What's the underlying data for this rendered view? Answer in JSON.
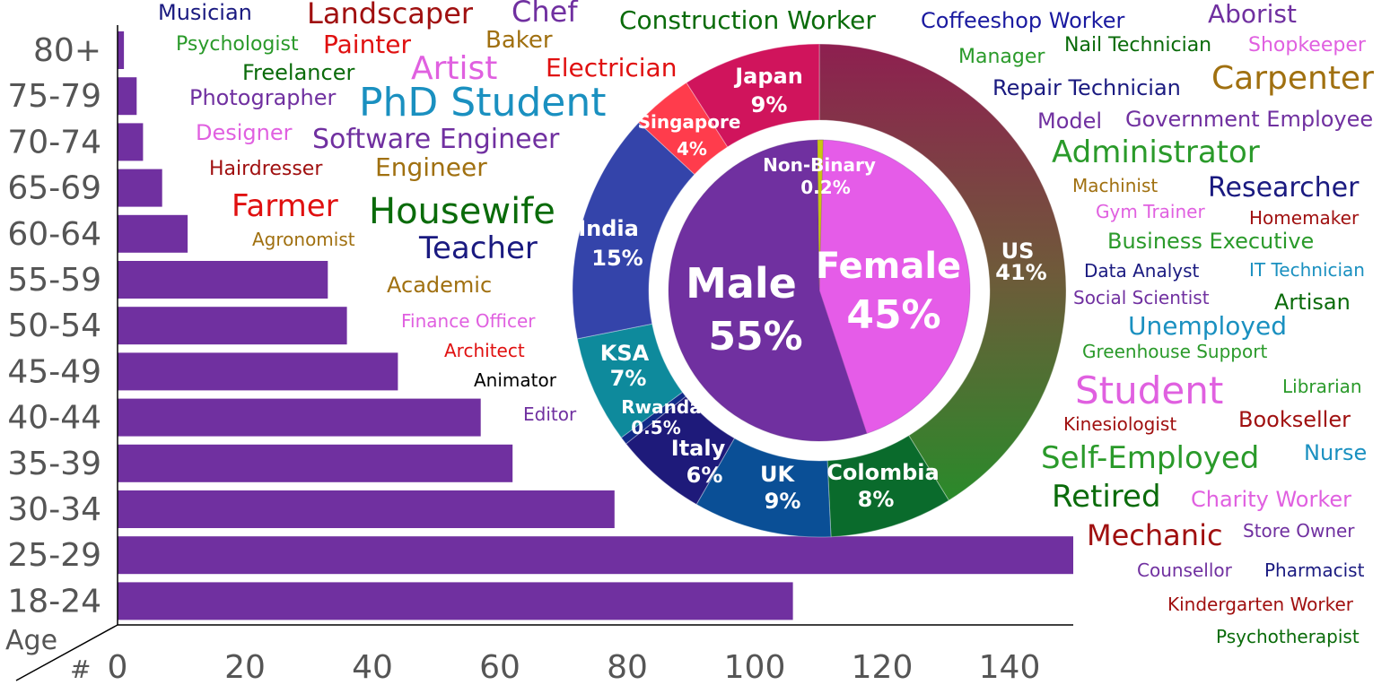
{
  "chart_data": [
    {
      "type": "bar",
      "orientation": "horizontal",
      "ylabel": "Age",
      "xlabel": "#",
      "categories": [
        "80+",
        "75-79",
        "70-74",
        "65-69",
        "60-64",
        "55-59",
        "50-54",
        "45-49",
        "40-44",
        "35-39",
        "30-34",
        "25-29",
        "18-24"
      ],
      "values": [
        1,
        3,
        4,
        7,
        11,
        33,
        36,
        44,
        57,
        62,
        78,
        150,
        106
      ],
      "xlim": [
        0,
        150
      ],
      "xticks": [
        "0",
        "20",
        "40",
        "60",
        "80",
        "100",
        "120",
        "140"
      ],
      "color": "#7030a0",
      "grid": false
    },
    {
      "type": "pie",
      "ring": "inner",
      "labels": [
        "Female",
        "Male",
        "Non-Binary"
      ],
      "values": [
        45,
        55,
        0.2
      ],
      "value_labels": [
        "45%",
        "55%",
        "0.2%"
      ],
      "colors": [
        "#e55ce8",
        "#7030a0",
        "#c8c810"
      ]
    },
    {
      "type": "pie",
      "ring": "outer",
      "labels": [
        "US",
        "Colombia",
        "UK",
        "Italy",
        "Rwanda",
        "KSA",
        "India",
        "Singapore",
        "Japan"
      ],
      "values": [
        41,
        8,
        9,
        6,
        0.5,
        7,
        15,
        4,
        9
      ],
      "value_labels": [
        "41%",
        "8%",
        "9%",
        "6%",
        "0.5%",
        "7%",
        "15%",
        "4%",
        "9%"
      ],
      "colors": [
        "#7a4a3c",
        "#0a6b2c",
        "#0a4f96",
        "#1e1a7a",
        "#102a88",
        "#0e8a9c",
        "#3444aa",
        "#ff3c4c",
        "#d0145c"
      ]
    }
  ],
  "word_cloud": [
    {
      "text": "Musician",
      "color": "#1a1a80"
    },
    {
      "text": "Landscaper",
      "color": "#a01010"
    },
    {
      "text": "Chef",
      "color": "#7030a0"
    },
    {
      "text": "Construction Worker",
      "color": "#0a6b0a"
    },
    {
      "text": "Coffeeshop Worker",
      "color": "#1a1aa0"
    },
    {
      "text": "Aborist",
      "color": "#7030a0"
    },
    {
      "text": "Psychologist",
      "color": "#2a9a2a"
    },
    {
      "text": "Painter",
      "color": "#e01010"
    },
    {
      "text": "Baker",
      "color": "#a07010"
    },
    {
      "text": "Manager",
      "color": "#2a9a2a"
    },
    {
      "text": "Nail Technician",
      "color": "#0a6b0a"
    },
    {
      "text": "Shopkeeper",
      "color": "#e060e0"
    },
    {
      "text": "Freelancer",
      "color": "#0a6b0a"
    },
    {
      "text": "Artist",
      "color": "#e060e0"
    },
    {
      "text": "Electrician",
      "color": "#e01010"
    },
    {
      "text": "Carpenter",
      "color": "#a07010"
    },
    {
      "text": "Repair Technician",
      "color": "#1a1a80"
    },
    {
      "text": "Photographer",
      "color": "#7030a0"
    },
    {
      "text": "PhD Student",
      "color": "#1a90c0"
    },
    {
      "text": "Model",
      "color": "#7030a0"
    },
    {
      "text": "Government Employee",
      "color": "#7030a0"
    },
    {
      "text": "Designer",
      "color": "#e060e0"
    },
    {
      "text": "Software Engineer",
      "color": "#7030a0"
    },
    {
      "text": "Administrator",
      "color": "#2a9a2a"
    },
    {
      "text": "Hairdresser",
      "color": "#a01010"
    },
    {
      "text": "Engineer",
      "color": "#a07010"
    },
    {
      "text": "Machinist",
      "color": "#a07010"
    },
    {
      "text": "Researcher",
      "color": "#1a1a80"
    },
    {
      "text": "Farmer",
      "color": "#e01010"
    },
    {
      "text": "Housewife",
      "color": "#0a6b0a"
    },
    {
      "text": "Gym Trainer",
      "color": "#e060e0"
    },
    {
      "text": "Homemaker",
      "color": "#a01010"
    },
    {
      "text": "Agronomist",
      "color": "#a07010"
    },
    {
      "text": "Teacher",
      "color": "#1a1a80"
    },
    {
      "text": "Business Executive",
      "color": "#2a9a2a"
    },
    {
      "text": "Data Analyst",
      "color": "#1a1a80"
    },
    {
      "text": "IT Technician",
      "color": "#1a90c0"
    },
    {
      "text": "Academic",
      "color": "#a07010"
    },
    {
      "text": "Social Scientist",
      "color": "#7030a0"
    },
    {
      "text": "Artisan",
      "color": "#0a6b0a"
    },
    {
      "text": "Finance Officer",
      "color": "#e060e0"
    },
    {
      "text": "Unemployed",
      "color": "#1a90c0"
    },
    {
      "text": "Architect",
      "color": "#e01010"
    },
    {
      "text": "Greenhouse Support",
      "color": "#2a9a2a"
    },
    {
      "text": "Animator",
      "color": "#000000"
    },
    {
      "text": "Student",
      "color": "#e060e0"
    },
    {
      "text": "Librarian",
      "color": "#2a9a2a"
    },
    {
      "text": "Editor",
      "color": "#7030a0"
    },
    {
      "text": "Kinesiologist",
      "color": "#a01010"
    },
    {
      "text": "Bookseller",
      "color": "#a01010"
    },
    {
      "text": "Self-Employed",
      "color": "#2a9a2a"
    },
    {
      "text": "Nurse",
      "color": "#1a90c0"
    },
    {
      "text": "Retired",
      "color": "#0a6b0a"
    },
    {
      "text": "Charity Worker",
      "color": "#e060e0"
    },
    {
      "text": "Mechanic",
      "color": "#a01010"
    },
    {
      "text": "Store Owner",
      "color": "#7030a0"
    },
    {
      "text": "Counsellor",
      "color": "#7030a0"
    },
    {
      "text": "Pharmacist",
      "color": "#1a1a80"
    },
    {
      "text": "Kindergarten Worker",
      "color": "#a01010"
    },
    {
      "text": "Psychotherapist",
      "color": "#0a6b0a"
    }
  ]
}
